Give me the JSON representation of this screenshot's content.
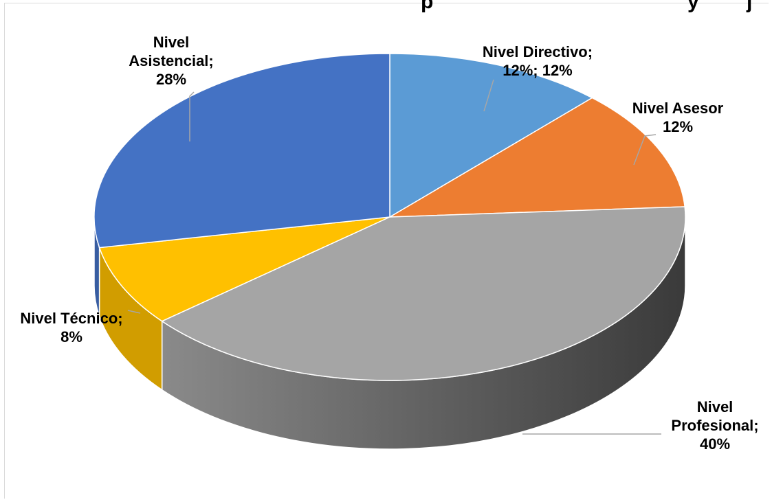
{
  "chart_data": {
    "type": "pie",
    "style": "3d",
    "title": "",
    "categories": [
      "Nivel Directivo",
      "Nivel Asesor",
      "Nivel Profesional",
      "Nivel Técnico",
      "Nivel Asistencial"
    ],
    "values": [
      12,
      12,
      40,
      8,
      28
    ],
    "unit": "%",
    "colors": {
      "Nivel Directivo": "#5b9bd5",
      "Nivel Asesor": "#ed7d31",
      "Nivel Profesional": "#a5a5a5",
      "Nivel Técnico": "#ffc000",
      "Nivel Asistencial": "#4472c4"
    },
    "data_labels": [
      {
        "category": "Nivel Directivo",
        "lines": [
          "Nivel Directivo;",
          "12%; 12%"
        ]
      },
      {
        "category": "Nivel Asesor",
        "lines": [
          "Nivel Asesor",
          "12%"
        ]
      },
      {
        "category": "Nivel Profesional",
        "lines": [
          "Nivel",
          "Profesional;",
          "40%"
        ]
      },
      {
        "category": "Nivel Técnico",
        "lines": [
          "Nivel Técnico;",
          "8%"
        ]
      },
      {
        "category": "Nivel Asistencial",
        "lines": [
          "Nivel",
          "Asistencial;",
          "28%"
        ]
      }
    ],
    "legend": "none"
  },
  "title_fragment": "...p... y ... j..."
}
